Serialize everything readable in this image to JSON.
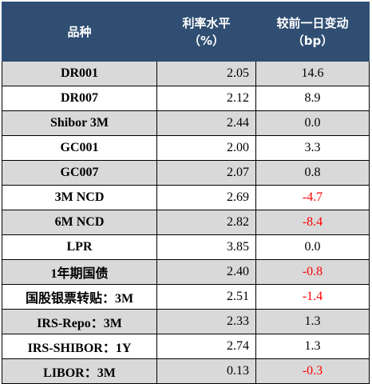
{
  "header": {
    "col1": "品种",
    "col2_line1": "利率水平",
    "col2_line2": "（%）",
    "col3_line1": "较前一日变动",
    "col3_line2": "（bp）"
  },
  "rows": [
    {
      "name": "DR001",
      "rate": "2.05",
      "change": "14.6"
    },
    {
      "name": "DR007",
      "rate": "2.12",
      "change": "8.9"
    },
    {
      "name": "Shibor 3M",
      "rate": "2.44",
      "change": "0.0"
    },
    {
      "name": "GC001",
      "rate": "2.00",
      "change": "3.3"
    },
    {
      "name": "GC007",
      "rate": "2.07",
      "change": "0.8"
    },
    {
      "name": "3M NCD",
      "rate": "2.69",
      "change": "-4.7"
    },
    {
      "name": "6M NCD",
      "rate": "2.82",
      "change": "-8.4"
    },
    {
      "name": "LPR",
      "rate": "3.85",
      "change": "0.0"
    },
    {
      "name": "1年期国债",
      "rate": "2.40",
      "change": "-0.8"
    },
    {
      "name": "国股银票转贴：3M",
      "rate": "2.51",
      "change": "-1.4"
    },
    {
      "name": "IRS-Repo：3M",
      "rate": "2.33",
      "change": "1.3"
    },
    {
      "name": "IRS-SHIBOR：1Y",
      "rate": "2.74",
      "change": "1.3"
    },
    {
      "name": "LIBOR：3M",
      "rate": "0.13",
      "change": "-0.3"
    }
  ],
  "colors": {
    "header_bg": "#2f4e72",
    "shade_bg": "#d9d9d9",
    "negative": "#ff0000"
  }
}
